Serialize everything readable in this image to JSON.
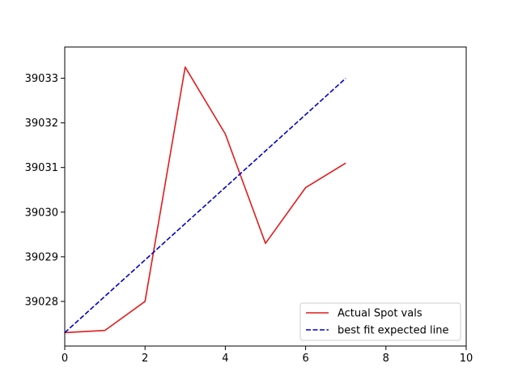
{
  "chart_data": {
    "type": "line",
    "title": "",
    "xlabel": "",
    "ylabel": "",
    "xlim": [
      0,
      10
    ],
    "ylim": [
      39027.0,
      39033.7
    ],
    "x_ticks": [
      0,
      2,
      4,
      6,
      8,
      10
    ],
    "y_ticks": [
      39028,
      39029,
      39030,
      39031,
      39032,
      39033
    ],
    "grid": false,
    "legend_position": "lower-right",
    "series": [
      {
        "name": "Actual Spot vals",
        "color": "#e41a1c",
        "style": "solid",
        "x": [
          0,
          1,
          2,
          3,
          4,
          5,
          6,
          7
        ],
        "y": [
          39027.3,
          39027.35,
          39028.0,
          39033.25,
          39031.75,
          39029.3,
          39030.55,
          39031.1
        ]
      },
      {
        "name": "best fit expected line",
        "color": "#0000cc",
        "style": "dashed",
        "x": [
          0,
          7
        ],
        "y": [
          39027.3,
          39033.0
        ]
      }
    ]
  }
}
